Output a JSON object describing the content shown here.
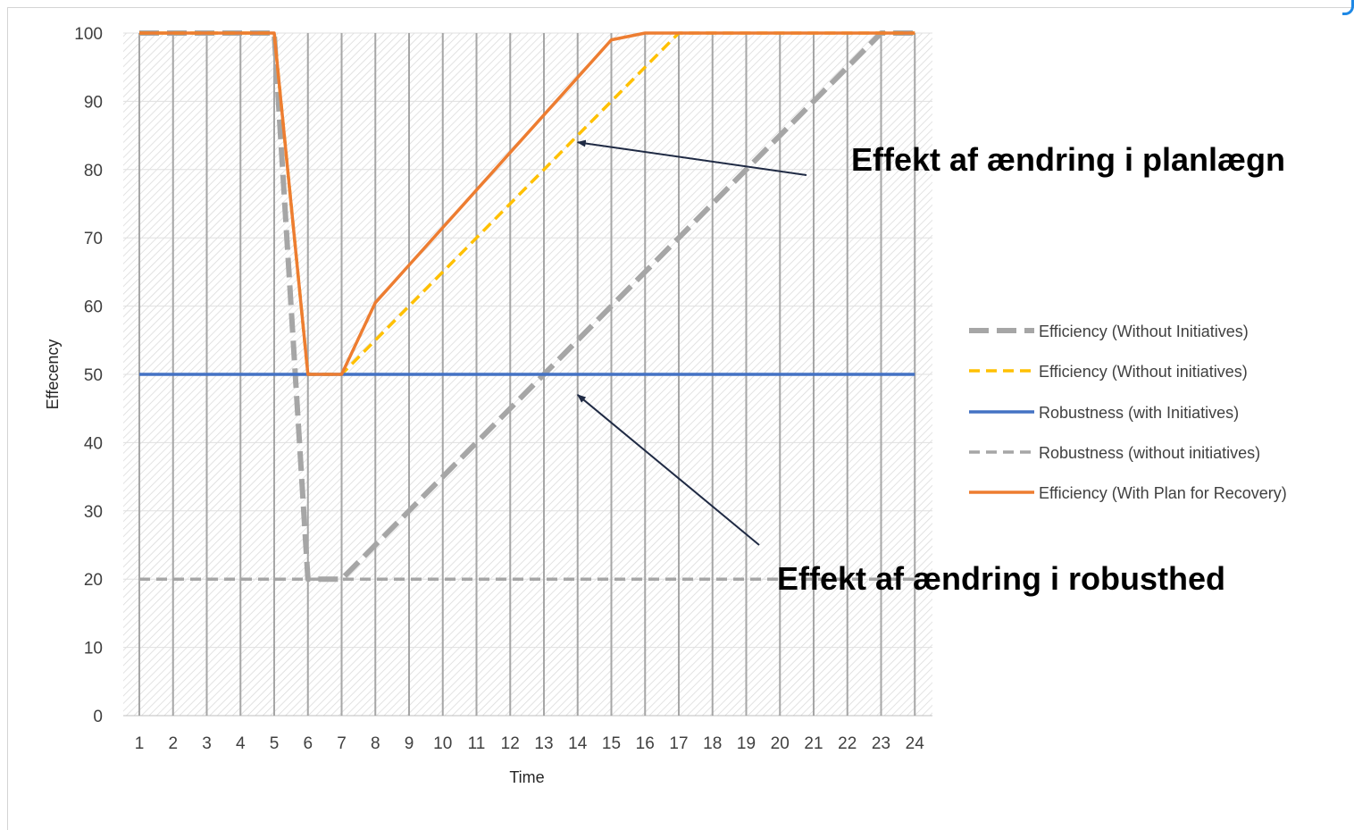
{
  "chart_data": {
    "type": "line",
    "title": "",
    "xlabel": "Time",
    "ylabel": "Effecency",
    "x": [
      1,
      2,
      3,
      4,
      5,
      6,
      7,
      8,
      9,
      10,
      11,
      12,
      13,
      14,
      15,
      16,
      17,
      18,
      19,
      20,
      21,
      22,
      23,
      24
    ],
    "ylim": [
      0,
      100
    ],
    "yticks": [
      0,
      10,
      20,
      30,
      40,
      50,
      60,
      70,
      80,
      90,
      100
    ],
    "grid": "vertical lines at each x, light horizontal gridlines, hatched plot background",
    "legend_position": "right",
    "series": [
      {
        "name": "Efficiency (Without  Initiatives)",
        "color": "#a6a6a6",
        "style": "dashed-thick",
        "values": [
          100,
          100,
          100,
          100,
          100,
          20,
          20,
          25,
          30,
          35,
          40,
          45,
          50,
          55,
          60,
          65,
          70,
          75,
          80,
          85,
          90,
          95,
          100,
          100
        ]
      },
      {
        "name": "Efficiency (Without initiatives)",
        "color": "#ffc000",
        "style": "dashed",
        "values": [
          100,
          100,
          100,
          100,
          100,
          50,
          50,
          55,
          60,
          65,
          70,
          75,
          80,
          85,
          90,
          95,
          100,
          100,
          100,
          100,
          100,
          100,
          100,
          100
        ]
      },
      {
        "name": "Robustness (with Initiatives)",
        "color": "#4472c4",
        "style": "solid",
        "values": [
          50,
          50,
          50,
          50,
          50,
          50,
          50,
          50,
          50,
          50,
          50,
          50,
          50,
          50,
          50,
          50,
          50,
          50,
          50,
          50,
          50,
          50,
          50,
          50
        ]
      },
      {
        "name": "Robustness (without initiatives)",
        "color": "#a6a6a6",
        "style": "dashed",
        "values": [
          20,
          20,
          20,
          20,
          20,
          20,
          20,
          20,
          20,
          20,
          20,
          20,
          20,
          20,
          20,
          20,
          20,
          20,
          20,
          20,
          20,
          20,
          20,
          20
        ]
      },
      {
        "name": "Efficiency (With Plan for Recovery)",
        "color": "#ed7d31",
        "style": "solid",
        "values": [
          100,
          100,
          100,
          100,
          100,
          50,
          50,
          60.5,
          66,
          71.5,
          77,
          82.5,
          88,
          93.5,
          99,
          100,
          100,
          100,
          100,
          100,
          100,
          100,
          100,
          100
        ]
      }
    ],
    "annotations": [
      {
        "text": "Effekt af ændring i planlægn",
        "arrow_to": {
          "x": 14,
          "y": 84
        }
      },
      {
        "text": "Effekt af ændring i robusthed",
        "arrow_to": {
          "x": 14,
          "y": 47
        }
      }
    ]
  }
}
